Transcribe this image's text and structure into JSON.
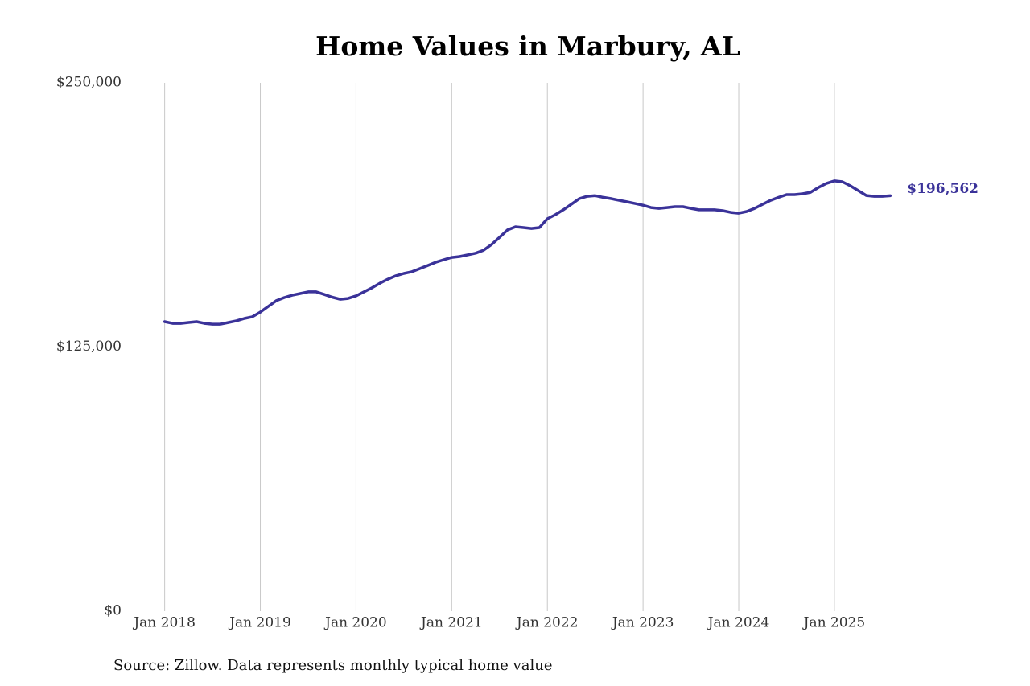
{
  "chart_data": {
    "type": "line",
    "title": "Home Values in Marbury, AL",
    "source": "Source: Zillow. Data represents monthly typical home value",
    "x": [
      "2018-01",
      "2018-02",
      "2018-03",
      "2018-04",
      "2018-05",
      "2018-06",
      "2018-07",
      "2018-08",
      "2018-09",
      "2018-10",
      "2018-11",
      "2018-12",
      "2019-01",
      "2019-02",
      "2019-03",
      "2019-04",
      "2019-05",
      "2019-06",
      "2019-07",
      "2019-08",
      "2019-09",
      "2019-10",
      "2019-11",
      "2019-12",
      "2020-01",
      "2020-02",
      "2020-03",
      "2020-04",
      "2020-05",
      "2020-06",
      "2020-07",
      "2020-08",
      "2020-09",
      "2020-10",
      "2020-11",
      "2020-12",
      "2021-01",
      "2021-02",
      "2021-03",
      "2021-04",
      "2021-05",
      "2021-06",
      "2021-07",
      "2021-08",
      "2021-09",
      "2021-10",
      "2021-11",
      "2021-12",
      "2022-01",
      "2022-02",
      "2022-03",
      "2022-04",
      "2022-05",
      "2022-06",
      "2022-07",
      "2022-08",
      "2022-09",
      "2022-10",
      "2022-11",
      "2022-12",
      "2023-01",
      "2023-02",
      "2023-03",
      "2023-04",
      "2023-05",
      "2023-06",
      "2023-07",
      "2023-08",
      "2023-09",
      "2023-10",
      "2023-11",
      "2023-12",
      "2024-01",
      "2024-02",
      "2024-03",
      "2024-04",
      "2024-05",
      "2024-06",
      "2024-07",
      "2024-08",
      "2024-09",
      "2024-10",
      "2024-11",
      "2024-12",
      "2025-01",
      "2025-02",
      "2025-03",
      "2025-04",
      "2025-05",
      "2025-06",
      "2025-07",
      "2025-08"
    ],
    "series": [
      {
        "color": "#3a3299",
        "values": [
          137000,
          136200,
          136200,
          136600,
          137000,
          136200,
          135800,
          135800,
          136600,
          137400,
          138500,
          139300,
          141500,
          144200,
          146900,
          148400,
          149500,
          150300,
          151100,
          151100,
          149900,
          148600,
          147600,
          148000,
          149200,
          151100,
          153000,
          155200,
          157100,
          158700,
          159800,
          160600,
          162100,
          163600,
          165100,
          166300,
          167400,
          167800,
          168600,
          169400,
          170800,
          173500,
          176900,
          180400,
          181900,
          181500,
          181100,
          181500,
          185700,
          187600,
          189900,
          192500,
          195200,
          196300,
          196600,
          195800,
          195200,
          194400,
          193700,
          192900,
          192100,
          191000,
          190600,
          191000,
          191400,
          191400,
          190600,
          189900,
          189900,
          189900,
          189500,
          188700,
          188300,
          189100,
          190600,
          192500,
          194400,
          195800,
          197100,
          197100,
          197500,
          198200,
          200500,
          202400,
          203600,
          203200,
          201300,
          199000,
          196700,
          196300,
          196300,
          196562
        ],
        "value_labels": [
          null,
          null,
          null,
          null,
          null,
          null,
          null,
          null,
          null,
          null,
          null,
          null,
          null,
          null,
          null,
          null,
          null,
          null,
          null,
          null,
          null,
          null,
          null,
          null,
          null,
          null,
          null,
          null,
          null,
          null,
          null,
          null,
          null,
          null,
          null,
          null,
          null,
          null,
          null,
          null,
          null,
          null,
          null,
          null,
          null,
          null,
          null,
          null,
          null,
          null,
          null,
          null,
          null,
          null,
          null,
          null,
          null,
          null,
          null,
          null,
          null,
          null,
          null,
          null,
          null,
          null,
          null,
          null,
          null,
          null,
          null,
          null,
          null,
          null,
          null,
          null,
          null,
          null,
          null,
          null,
          null,
          null,
          null,
          null,
          null,
          null,
          null,
          null,
          null,
          null,
          null,
          "$196,562"
        ]
      }
    ],
    "xlim": [
      "2017-09",
      "2025-11"
    ],
    "xticks": [
      {
        "value": "2018-01",
        "label": "Jan 2018"
      },
      {
        "value": "2019-01",
        "label": "Jan 2019"
      },
      {
        "value": "2020-01",
        "label": "Jan 2020"
      },
      {
        "value": "2021-01",
        "label": "Jan 2021"
      },
      {
        "value": "2022-01",
        "label": "Jan 2022"
      },
      {
        "value": "2023-01",
        "label": "Jan 2023"
      },
      {
        "value": "2024-01",
        "label": "Jan 2024"
      },
      {
        "value": "2025-01",
        "label": "Jan 2025"
      }
    ],
    "ylim": [
      0,
      250000
    ],
    "yticks": [
      {
        "value": 0,
        "label": "$0"
      },
      {
        "value": 125000,
        "label": "$125,000"
      },
      {
        "value": 250000,
        "label": "$250,000"
      }
    ],
    "grid": "x"
  }
}
